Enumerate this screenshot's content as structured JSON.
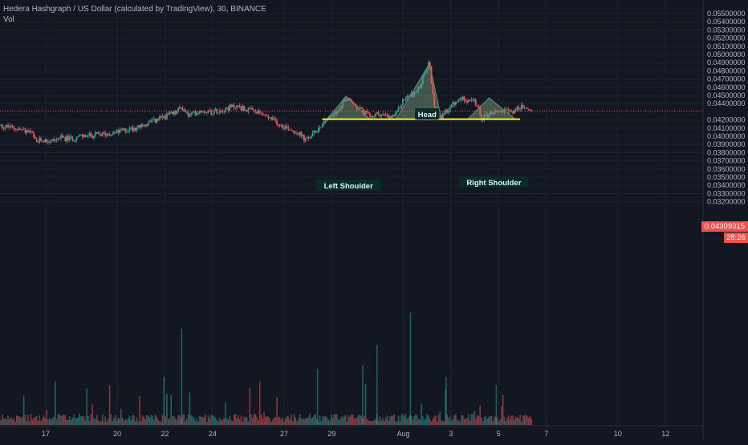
{
  "legend": {
    "title": "Hedera Hashgraph / US Dollar (calculated by TradingView), 30, BINANCE",
    "indicator": "Vol"
  },
  "last_price": {
    "value": "0.04309315",
    "countdown": "28:26"
  },
  "colors": {
    "background": "#131722",
    "grid": "#1e222d",
    "bull": "#26a69a",
    "bear": "#ef5350",
    "neckline": "#ffeb3b",
    "pattern_fill": "#9ccc9c",
    "label_bg": "#0b2a2a",
    "label_text": "#e0f2f1"
  },
  "chart_data": {
    "type": "candlestick",
    "instrument": "Hedera Hashgraph / US Dollar",
    "interval": "30",
    "exchange": "BINANCE",
    "x_ticks": [
      "17",
      "20",
      "22",
      "24",
      "27",
      "29",
      "Aug",
      "3",
      "5",
      "7",
      "10",
      "12"
    ],
    "y_ticks": [
      "0.05500000",
      "0.05400000",
      "0.05300000",
      "0.05200000",
      "0.05100000",
      "0.05000000",
      "0.04900000",
      "0.04800000",
      "0.04700000",
      "0.04600000",
      "0.04500000",
      "0.04400000",
      "0.04200000",
      "0.04100000",
      "0.04000000",
      "0.03900000",
      "0.03800000",
      "0.03700000",
      "0.03600000",
      "0.03500000",
      "0.03400000",
      "0.03300000",
      "0.03200000"
    ],
    "ylim": [
      0.0319,
      0.0558
    ],
    "price_path": [
      [
        15.0,
        0.0413
      ],
      [
        15.5,
        0.0411
      ],
      [
        16.0,
        0.0408
      ],
      [
        16.4,
        0.0404
      ],
      [
        16.6,
        0.0392
      ],
      [
        16.8,
        0.0396
      ],
      [
        17.2,
        0.0394
      ],
      [
        17.6,
        0.0398
      ],
      [
        18.0,
        0.0397
      ],
      [
        18.5,
        0.04
      ],
      [
        19.0,
        0.0401
      ],
      [
        19.5,
        0.0403
      ],
      [
        20.0,
        0.0405
      ],
      [
        20.5,
        0.0409
      ],
      [
        21.0,
        0.0412
      ],
      [
        21.5,
        0.0418
      ],
      [
        22.0,
        0.0424
      ],
      [
        22.4,
        0.0428
      ],
      [
        22.7,
        0.0436
      ],
      [
        23.0,
        0.0425
      ],
      [
        23.5,
        0.0432
      ],
      [
        24.0,
        0.043
      ],
      [
        24.5,
        0.0434
      ],
      [
        25.0,
        0.0437
      ],
      [
        25.5,
        0.0432
      ],
      [
        26.0,
        0.0428
      ],
      [
        26.4,
        0.0422
      ],
      [
        26.8,
        0.0415
      ],
      [
        27.2,
        0.041
      ],
      [
        27.6,
        0.0404
      ],
      [
        27.9,
        0.0395
      ],
      [
        28.2,
        0.0402
      ],
      [
        28.5,
        0.0412
      ],
      [
        28.8,
        0.0422
      ],
      [
        29.2,
        0.0428
      ],
      [
        29.6,
        0.0447
      ],
      [
        30.0,
        0.0437
      ],
      [
        30.3,
        0.043
      ],
      [
        30.6,
        0.0424
      ],
      [
        31.0,
        0.0428
      ],
      [
        31.4,
        0.0422
      ],
      [
        31.7,
        0.0426
      ],
      [
        32.0,
        0.0445
      ],
      [
        32.6,
        0.0455
      ],
      [
        33.1,
        0.049
      ],
      [
        33.3,
        0.0433
      ],
      [
        33.6,
        0.0423
      ],
      [
        34.0,
        0.0437
      ],
      [
        34.5,
        0.0447
      ],
      [
        35.0,
        0.0442
      ],
      [
        35.3,
        0.0422
      ],
      [
        35.6,
        0.0428
      ],
      [
        36.0,
        0.0431
      ],
      [
        36.5,
        0.043
      ],
      [
        37.0,
        0.0436
      ],
      [
        37.4,
        0.0431
      ]
    ],
    "annotations": {
      "left_shoulder": "Left Shoulder",
      "head": "Head",
      "right_shoulder": "Right Shoulder",
      "neckline_price": 0.0421
    },
    "last_price": 0.04309315,
    "volume": "relative bars along bottom pane"
  }
}
